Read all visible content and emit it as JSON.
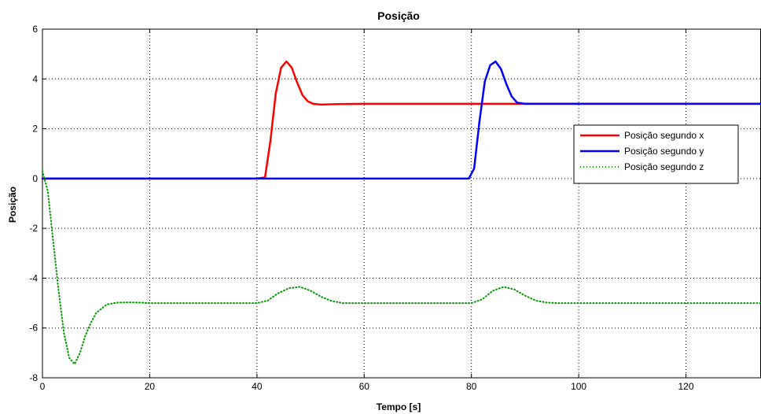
{
  "chart_data": {
    "type": "line",
    "title": "Posição",
    "xlabel": "Tempo [s]",
    "ylabel": "Posição",
    "xlim": [
      0,
      134
    ],
    "ylim": [
      -8,
      6
    ],
    "xticks": [
      0,
      20,
      40,
      60,
      80,
      100,
      120
    ],
    "yticks": [
      -8,
      -6,
      -4,
      -2,
      0,
      2,
      4,
      6
    ],
    "grid": true,
    "legend_position": "right",
    "series": [
      {
        "name": "Posição segundo x",
        "color": "#ff0000",
        "style": "solid",
        "x": [
          0,
          40,
          41.5,
          42.5,
          43.5,
          44.5,
          45.5,
          46.5,
          47.5,
          48.5,
          49.5,
          50.5,
          52,
          55,
          60,
          70,
          80,
          90,
          100,
          120,
          134
        ],
        "y": [
          0,
          0,
          0.05,
          1.5,
          3.4,
          4.45,
          4.7,
          4.45,
          3.85,
          3.35,
          3.1,
          3.0,
          2.97,
          2.99,
          3.0,
          3.0,
          3.0,
          3.0,
          3.0,
          3.0,
          3.0
        ]
      },
      {
        "name": "Posição segundo y",
        "color": "#0000ff",
        "style": "solid",
        "x": [
          0,
          40,
          79.5,
          80.5,
          81.5,
          82.5,
          83.5,
          84.5,
          85.5,
          86.5,
          87.5,
          88.5,
          90,
          95,
          100,
          120,
          134
        ],
        "y": [
          0,
          0,
          0,
          0.4,
          2.3,
          3.9,
          4.55,
          4.7,
          4.4,
          3.8,
          3.3,
          3.05,
          3.0,
          3.0,
          3.0,
          3.0,
          3.0
        ]
      },
      {
        "name": "Posição segundo z",
        "color": "#009900",
        "style": "dotted",
        "x": [
          0,
          1,
          2,
          3,
          4,
          5,
          6,
          7,
          8,
          9,
          10,
          12,
          14,
          16,
          18,
          20,
          30,
          40,
          42,
          44,
          46,
          48,
          50,
          52,
          54,
          56,
          60,
          70,
          80,
          82,
          84,
          86,
          88,
          90,
          92,
          94,
          96,
          100,
          120,
          134
        ],
        "y": [
          0.3,
          -0.5,
          -2.5,
          -4.5,
          -6.2,
          -7.2,
          -7.45,
          -7.0,
          -6.3,
          -5.8,
          -5.4,
          -5.05,
          -4.98,
          -4.97,
          -4.98,
          -5.0,
          -5.0,
          -5.0,
          -4.9,
          -4.6,
          -4.4,
          -4.35,
          -4.5,
          -4.75,
          -4.92,
          -5.0,
          -5.0,
          -5.0,
          -5.0,
          -4.85,
          -4.5,
          -4.35,
          -4.45,
          -4.7,
          -4.9,
          -4.98,
          -5.0,
          -5.0,
          -5.0,
          -5.0
        ]
      }
    ]
  }
}
